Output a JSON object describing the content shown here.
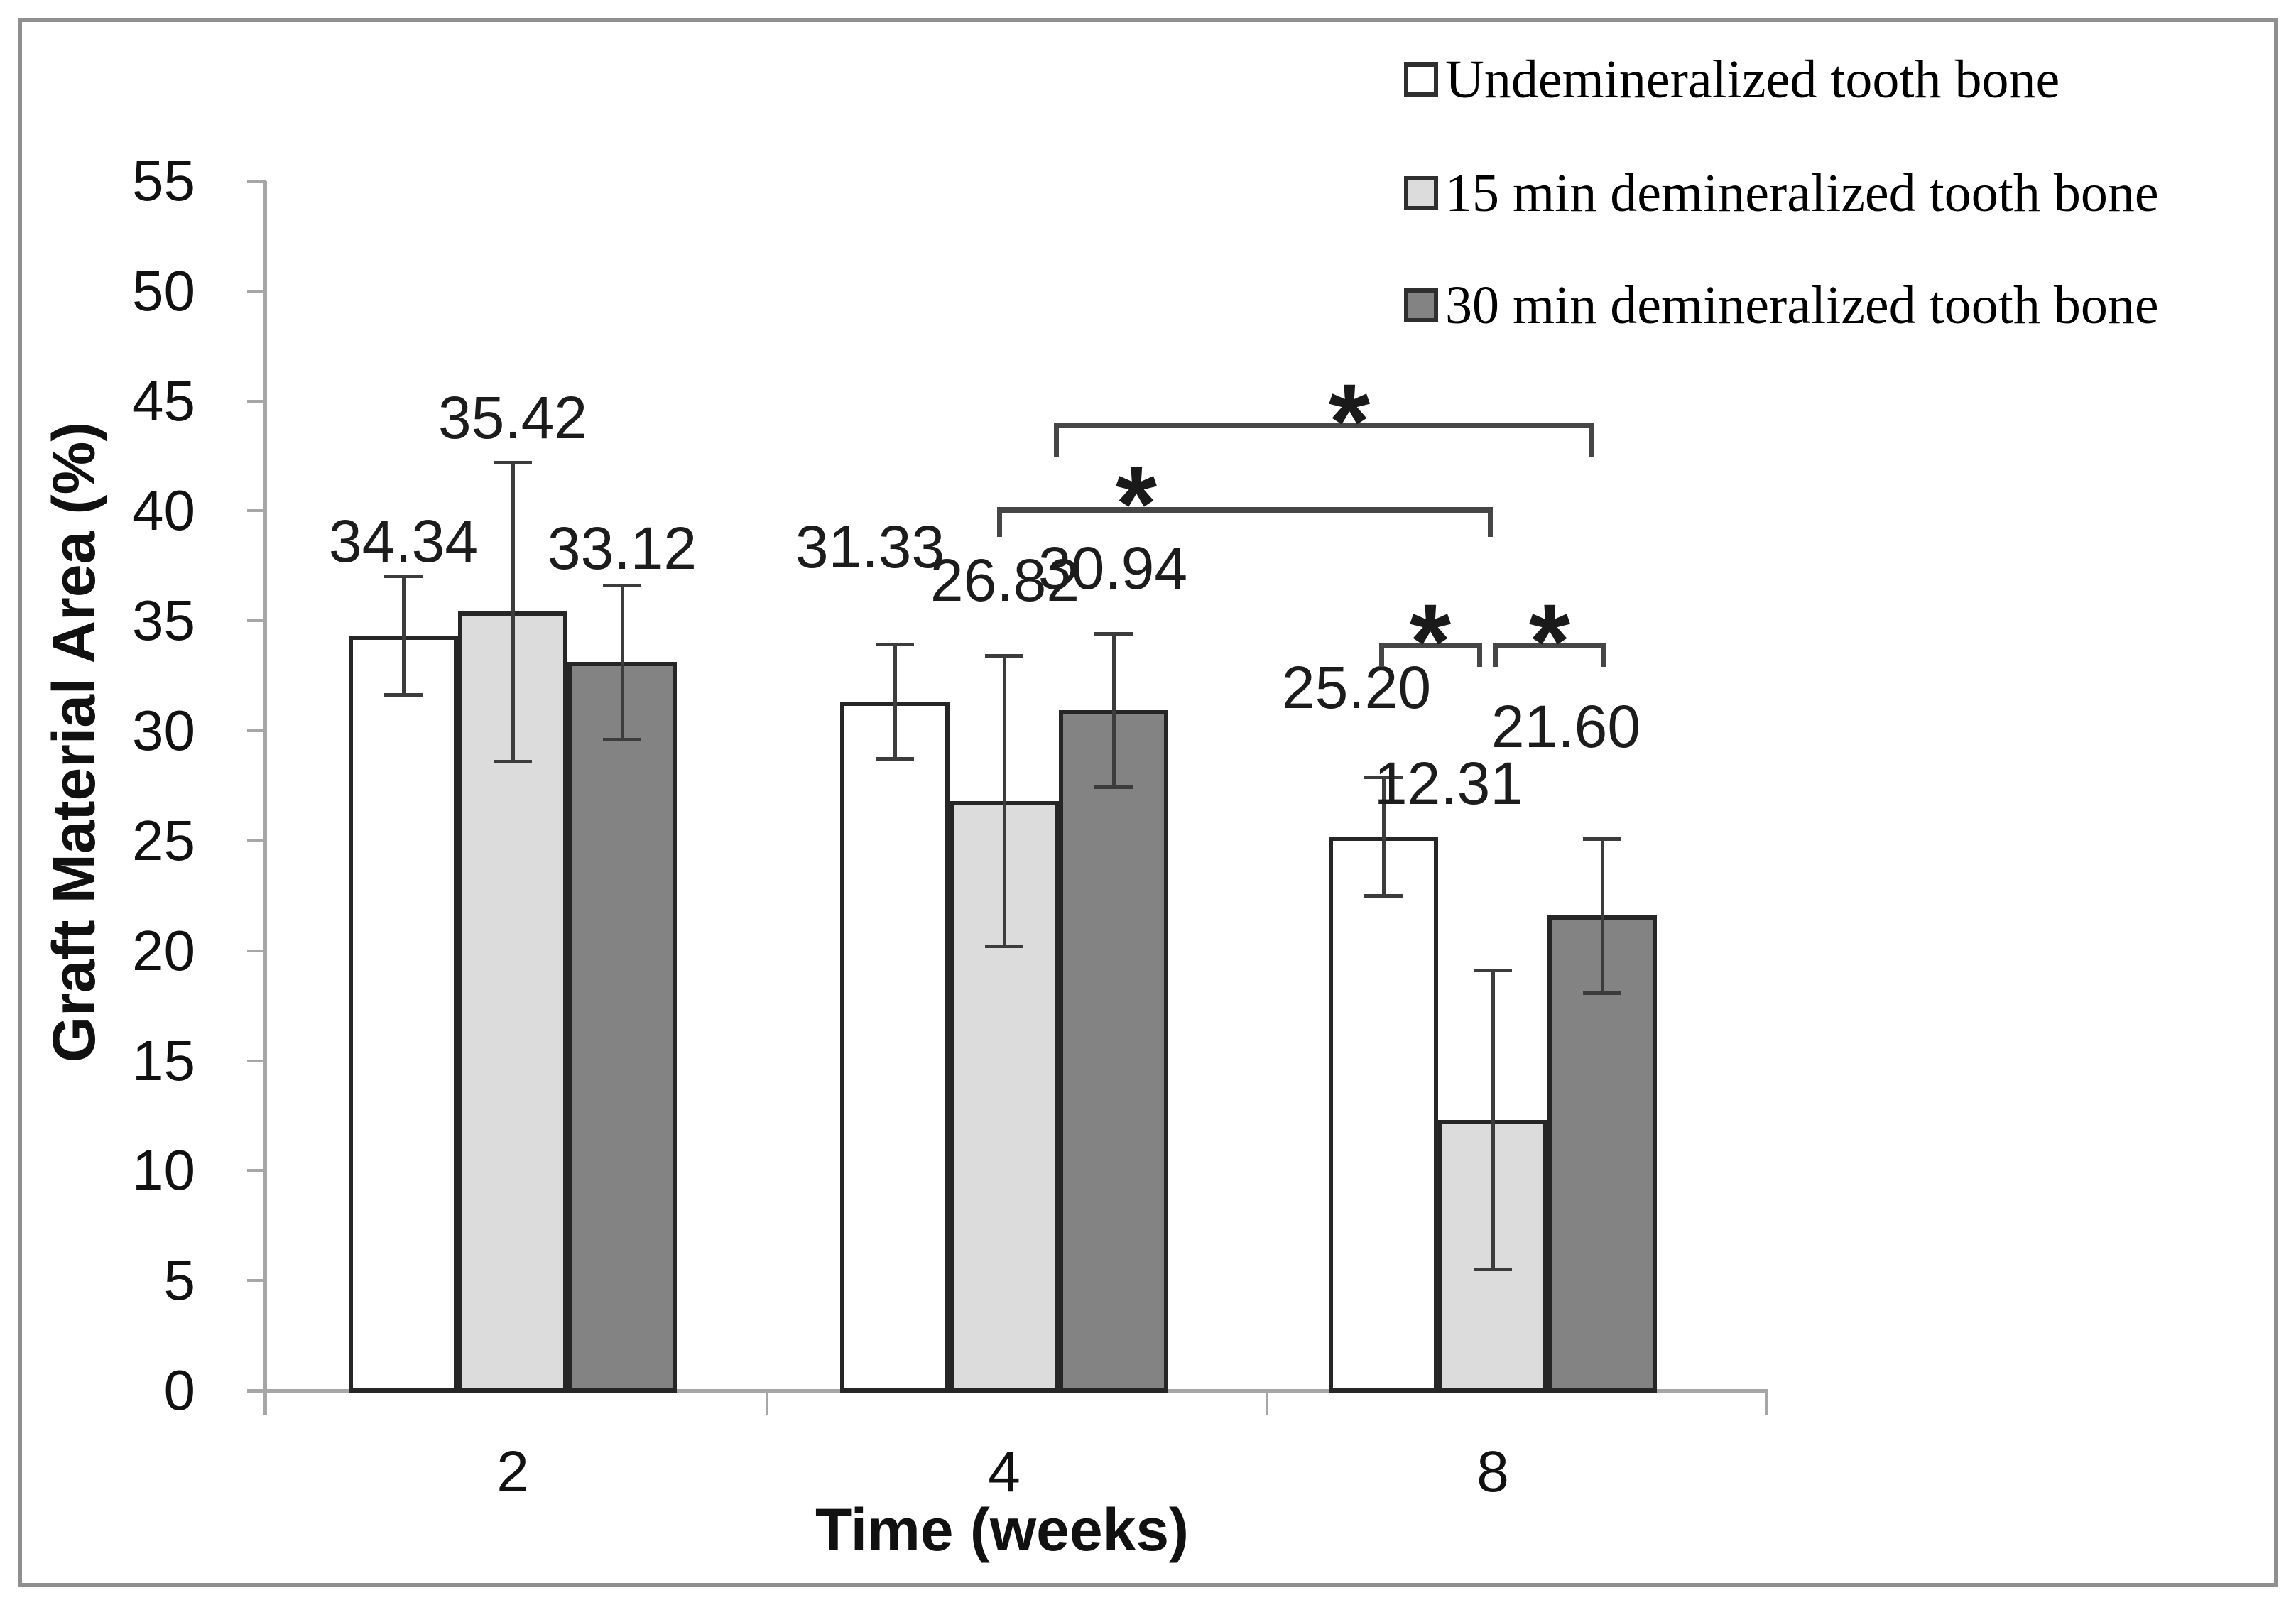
{
  "chart_data": {
    "type": "bar",
    "title": "",
    "xlabel": "Time (weeks)",
    "ylabel": "Graft Material Area (%)",
    "categories": [
      "2",
      "4",
      "8"
    ],
    "series": [
      {
        "name": "Undemineralized tooth bone",
        "fill": "#ffffff",
        "values": [
          34.34,
          31.33,
          25.2
        ],
        "errors": [
          2.7,
          2.6,
          2.7
        ]
      },
      {
        "name": "15 min demineralized tooth bone",
        "fill": "#dcdcdc",
        "values": [
          35.42,
          26.82,
          12.31
        ],
        "errors": [
          6.8,
          6.6,
          6.8
        ]
      },
      {
        "name": "30 min demineralized tooth bone",
        "fill": "#838383",
        "values": [
          33.12,
          30.94,
          21.6
        ],
        "errors": [
          3.5,
          3.5,
          3.5
        ]
      }
    ],
    "ylim": [
      0,
      55
    ],
    "ytick_step": 5,
    "grid": false,
    "legend_position": "top-right",
    "bar_border_color": "#262626",
    "error_bar_color": "#3c3c3c",
    "axis_color": "#a6a6a6",
    "significance": [
      {
        "symbol": "*",
        "compares": [
          "30 min demineralized @ 4 weeks",
          "30 min demineralized @ 8 weeks"
        ]
      },
      {
        "symbol": "*",
        "compares": [
          "15 min demineralized @ 4 weeks",
          "15 min demineralized @ 8 weeks"
        ]
      },
      {
        "symbol": "*",
        "compares": [
          "Undemineralized @ 8 weeks",
          "15 min demineralized @ 8 weeks"
        ]
      },
      {
        "symbol": "*",
        "compares": [
          "15 min demineralized @ 8 weeks",
          "30 min demineralized @ 8 weeks"
        ]
      }
    ]
  }
}
